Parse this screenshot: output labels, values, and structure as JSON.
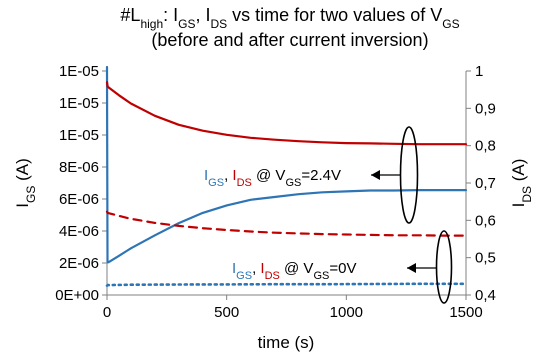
{
  "chart_data": {
    "type": "line",
    "title_line1_parts": [
      "#L",
      "high",
      ": I",
      "GS",
      ", I",
      "DS",
      " vs time for two values of V",
      "GS"
    ],
    "title_line2": "(before and after current inversion)",
    "xlabel": "time (s)",
    "ylabel_left": {
      "main": "I",
      "sub": "GS",
      "unit": " (A)"
    },
    "ylabel_right": {
      "main": "I",
      "sub": "DS",
      "unit": " (A)"
    },
    "xlim": [
      0,
      1500
    ],
    "ylim_left": [
      0,
      1.2e-05
    ],
    "ylim_right": [
      0.4,
      1.0
    ],
    "x_ticks": [
      "0",
      "500",
      "1000",
      "1500"
    ],
    "x_tick_values": [
      0,
      500,
      1000,
      1500
    ],
    "y_left_ticks": [
      "0E+00",
      "2E-06",
      "4E-06",
      "6E-06",
      "8E-06",
      "1E-05",
      "1E-05",
      "1E-05"
    ],
    "y_left_tick_values": [
      0,
      2e-06,
      4e-06,
      6e-06,
      8e-06,
      1e-05,
      1.2e-05,
      1.4e-05
    ],
    "y_right_ticks": [
      "0,4",
      "0,5",
      "0,6",
      "0,7",
      "0,8",
      "0,9",
      "1"
    ],
    "y_right_tick_values": [
      0.4,
      0.5,
      0.6,
      0.7,
      0.8,
      0.9,
      1.0
    ],
    "series": [
      {
        "axis": "left",
        "color": "#2e75b6",
        "style": "solid",
        "x": [
          0,
          2,
          3,
          6,
          50,
          100,
          200,
          300,
          400,
          500,
          600,
          700,
          800,
          900,
          1000,
          1100,
          1200,
          1300,
          1400,
          1500
        ],
        "y": [
          1.38e-05,
          1.8e-06,
          1.75e-06,
          1.75e-06,
          2.1e-06,
          2.5e-06,
          3.2e-06,
          3.85e-06,
          4.4e-06,
          4.8e-06,
          5.1e-06,
          5.25e-06,
          5.4e-06,
          5.5e-06,
          5.55e-06,
          5.6e-06,
          5.6e-06,
          5.62e-06,
          5.62e-06,
          5.62e-06
        ]
      },
      {
        "axis": "right",
        "color": "#c00000",
        "style": "solid",
        "x": [
          0,
          3,
          50,
          100,
          200,
          300,
          400,
          500,
          600,
          700,
          800,
          900,
          1000,
          1100,
          1200,
          1300,
          1400,
          1500
        ],
        "y": [
          0.97,
          0.958,
          0.935,
          0.913,
          0.88,
          0.856,
          0.84,
          0.829,
          0.821,
          0.816,
          0.812,
          0.809,
          0.807,
          0.806,
          0.805,
          0.804,
          0.804,
          0.804
        ]
      },
      {
        "axis": "right",
        "color": "#c00000",
        "style": "dashed",
        "x": [
          0,
          3,
          50,
          100,
          200,
          300,
          400,
          500,
          600,
          700,
          800,
          900,
          1000,
          1100,
          1200,
          1300,
          1400,
          1500
        ],
        "y": [
          0.623,
          0.62,
          0.612,
          0.604,
          0.593,
          0.585,
          0.579,
          0.574,
          0.57,
          0.567,
          0.565,
          0.563,
          0.562,
          0.561,
          0.56,
          0.56,
          0.559,
          0.559
        ]
      },
      {
        "axis": "left",
        "color": "#2e75b6",
        "style": "dotted",
        "x": [
          0,
          3,
          100,
          300,
          500,
          700,
          900,
          1100,
          1300,
          1500
        ],
        "y": [
          5e-07,
          5.3e-07,
          5.5e-07,
          5.6e-07,
          5.7e-07,
          5.8e-07,
          5.8e-07,
          5.9e-07,
          6e-07,
          6e-07
        ]
      }
    ],
    "annotations": [
      {
        "text_parts": [
          [
            "I",
            "#2e75b6",
            false
          ],
          [
            "GS",
            "#2e75b6",
            true
          ],
          [
            ", ",
            "#000000",
            false
          ],
          [
            "I",
            "#c00000",
            false
          ],
          [
            "DS",
            "#c00000",
            true
          ],
          [
            " @ V",
            "#000000",
            false
          ],
          [
            "GS",
            "#000000",
            true
          ],
          [
            "=2.4V",
            "#000000",
            false
          ]
        ]
      },
      {
        "text_parts": [
          [
            "I",
            "#2e75b6",
            false
          ],
          [
            "GS",
            "#2e75b6",
            true
          ],
          [
            ", ",
            "#000000",
            false
          ],
          [
            "I",
            "#c00000",
            false
          ],
          [
            "DS",
            "#c00000",
            true
          ],
          [
            " @ V",
            "#000000",
            false
          ],
          [
            "GS",
            "#000000",
            true
          ],
          [
            "=0V",
            "#000000",
            false
          ]
        ]
      }
    ],
    "grid": false,
    "colors": {
      "igs": "#2e75b6",
      "ids": "#c00000",
      "axis": "#808080"
    }
  }
}
